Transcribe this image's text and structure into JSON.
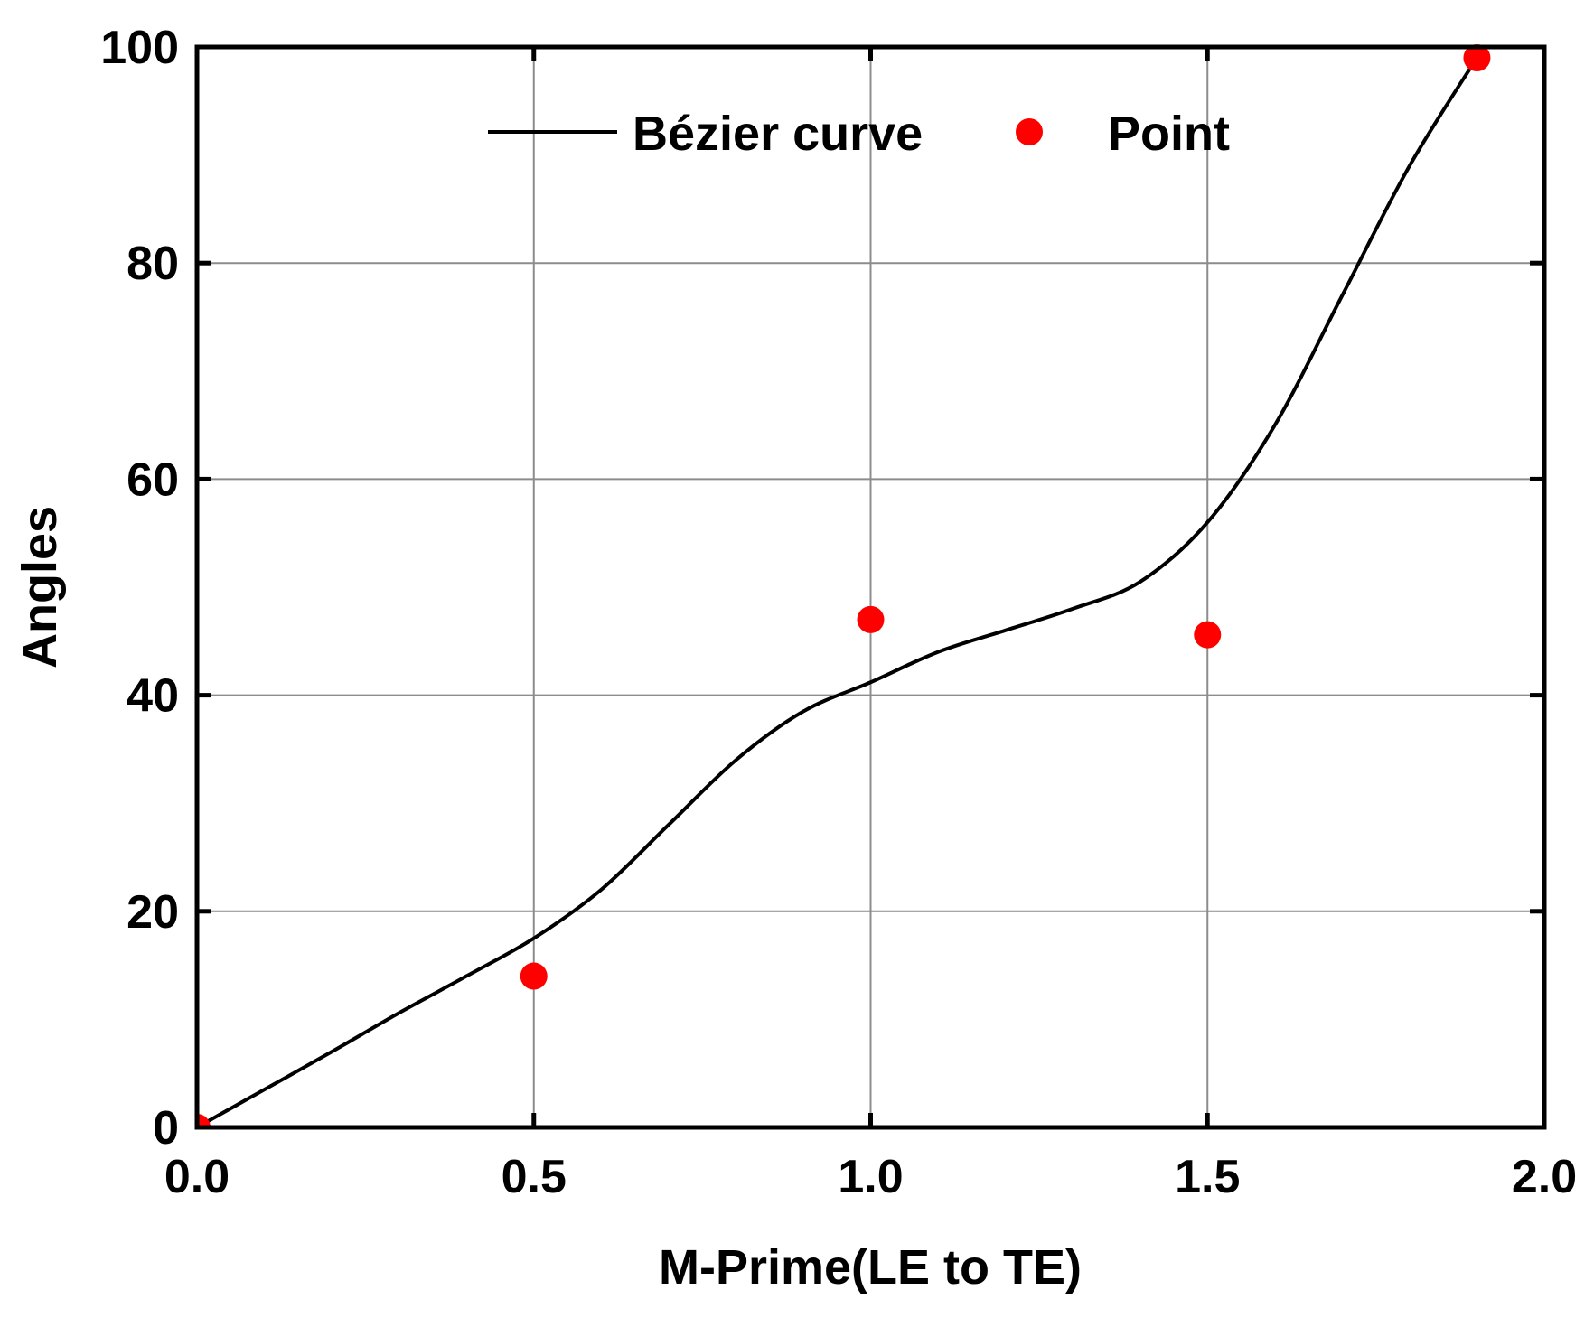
{
  "chart_data": {
    "type": "line",
    "title": "",
    "xlabel": "M-Prime(LE to TE)",
    "ylabel": "Angles",
    "xlim": [
      0.0,
      2.0
    ],
    "ylim": [
      0,
      100
    ],
    "xticks": [
      "0.0",
      "0.5",
      "1.0",
      "1.5",
      "2.0"
    ],
    "yticks": [
      "0",
      "20",
      "40",
      "60",
      "80",
      "100"
    ],
    "grid": true,
    "legend": {
      "position": "top-center",
      "horizontal": true,
      "entries": [
        "Bézier curve",
        "Point"
      ]
    },
    "series": [
      {
        "name": "Bézier curve",
        "kind": "line",
        "color": "#000000",
        "x": [
          0.0,
          0.1,
          0.2,
          0.3,
          0.4,
          0.5,
          0.6,
          0.7,
          0.8,
          0.9,
          1.0,
          1.1,
          1.2,
          1.3,
          1.4,
          1.5,
          1.6,
          1.7,
          1.8,
          1.9
        ],
        "y": [
          0.0,
          3.5,
          7.0,
          10.6,
          14.0,
          17.5,
          22.0,
          28.0,
          34.0,
          38.5,
          41.2,
          44.0,
          46.0,
          48.0,
          50.5,
          56.0,
          65.0,
          77.0,
          89.0,
          99.0
        ]
      },
      {
        "name": "Point",
        "kind": "scatter",
        "color": "#ff0000",
        "x": [
          0.0,
          0.5,
          1.0,
          1.5,
          1.9
        ],
        "y": [
          0.0,
          14.0,
          47.0,
          45.6,
          99.0
        ]
      }
    ]
  }
}
